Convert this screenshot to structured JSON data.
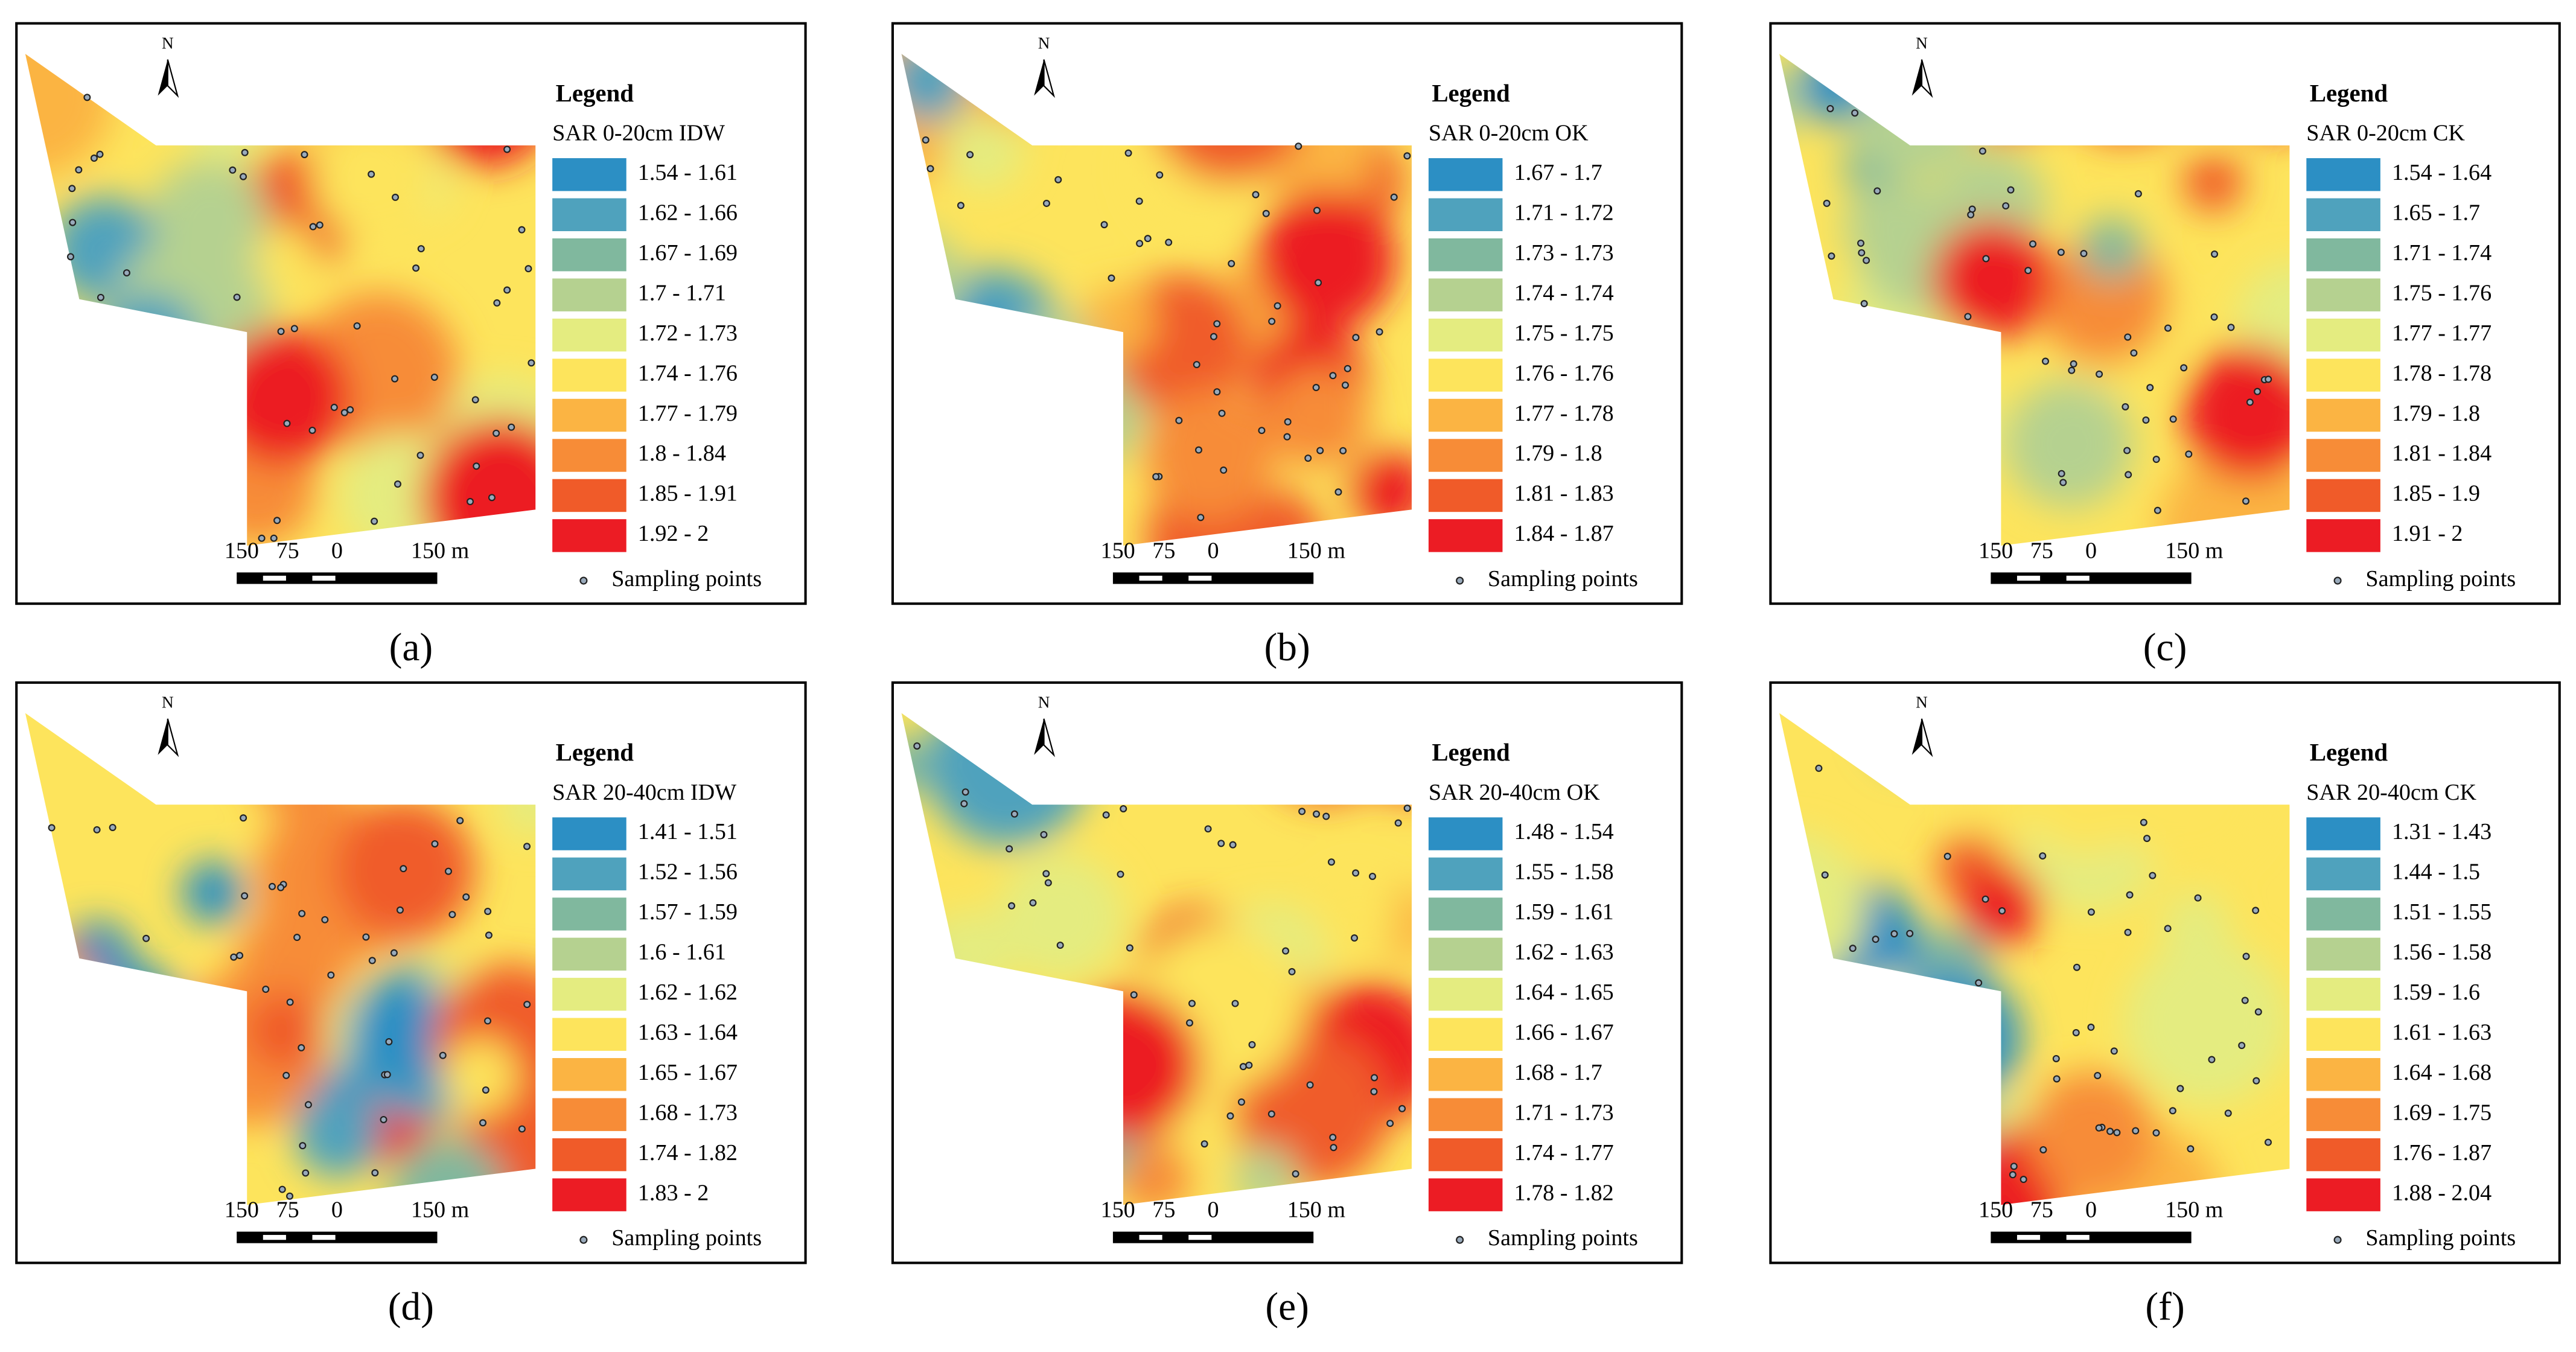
{
  "panels": [
    {
      "caption": "(a)",
      "north": "N",
      "legend_title": "Legend",
      "layer": "SAR 0-20cm IDW",
      "classes": [
        {
          "label": "1.54 - 1.61",
          "color": "#2c8fc4"
        },
        {
          "label": "1.62 - 1.66",
          "color": "#4fa2bd"
        },
        {
          "label": "1.67 - 1.69",
          "color": "#80b89e"
        },
        {
          "label": "1.7 - 1.71",
          "color": "#b5d190"
        },
        {
          "label": "1.72 - 1.73",
          "color": "#e4ec80"
        },
        {
          "label": "1.74 - 1.76",
          "color": "#fde45c"
        },
        {
          "label": "1.77 - 1.79",
          "color": "#fbb443"
        },
        {
          "label": "1.8 - 1.84",
          "color": "#f78c37"
        },
        {
          "label": "1.85 - 1.91",
          "color": "#f05b29"
        },
        {
          "label": "1.92 - 2",
          "color": "#ec1c24"
        }
      ],
      "scale_labels": [
        "150",
        "75",
        "0",
        "150 m"
      ],
      "points_label": "Sampling points"
    },
    {
      "caption": "(b)",
      "north": "N",
      "legend_title": "Legend",
      "layer": "SAR 0-20cm OK",
      "classes": [
        {
          "label": "1.67 - 1.7",
          "color": "#2c8fc4"
        },
        {
          "label": "1.71 - 1.72",
          "color": "#4fa2bd"
        },
        {
          "label": "1.73 - 1.73",
          "color": "#80b89e"
        },
        {
          "label": "1.74 - 1.74",
          "color": "#b5d190"
        },
        {
          "label": "1.75 - 1.75",
          "color": "#e4ec80"
        },
        {
          "label": "1.76 - 1.76",
          "color": "#fde45c"
        },
        {
          "label": "1.77 - 1.78",
          "color": "#fbb443"
        },
        {
          "label": "1.79 - 1.8",
          "color": "#f78c37"
        },
        {
          "label": "1.81 - 1.83",
          "color": "#f05b29"
        },
        {
          "label": "1.84 - 1.87",
          "color": "#ec1c24"
        }
      ],
      "scale_labels": [
        "150",
        "75",
        "0",
        "150 m"
      ],
      "points_label": "Sampling points"
    },
    {
      "caption": "(c)",
      "north": "N",
      "legend_title": "Legend",
      "layer": "SAR 0-20cm CK",
      "classes": [
        {
          "label": "1.54 - 1.64",
          "color": "#2c8fc4"
        },
        {
          "label": "1.65 - 1.7",
          "color": "#4fa2bd"
        },
        {
          "label": "1.71 - 1.74",
          "color": "#80b89e"
        },
        {
          "label": "1.75 - 1.76",
          "color": "#b5d190"
        },
        {
          "label": "1.77 - 1.77",
          "color": "#e4ec80"
        },
        {
          "label": "1.78 - 1.78",
          "color": "#fde45c"
        },
        {
          "label": "1.79 - 1.8",
          "color": "#fbb443"
        },
        {
          "label": "1.81 - 1.84",
          "color": "#f78c37"
        },
        {
          "label": "1.85 - 1.9",
          "color": "#f05b29"
        },
        {
          "label": "1.91 - 2",
          "color": "#ec1c24"
        }
      ],
      "scale_labels": [
        "150",
        "75",
        "0",
        "150 m"
      ],
      "points_label": "Sampling points"
    },
    {
      "caption": "(d)",
      "north": "N",
      "legend_title": "Legend",
      "layer": "SAR 20-40cm IDW",
      "classes": [
        {
          "label": "1.41 - 1.51",
          "color": "#2c8fc4"
        },
        {
          "label": "1.52 - 1.56",
          "color": "#4fa2bd"
        },
        {
          "label": "1.57 - 1.59",
          "color": "#80b89e"
        },
        {
          "label": "1.6 - 1.61",
          "color": "#b5d190"
        },
        {
          "label": "1.62 - 1.62",
          "color": "#e4ec80"
        },
        {
          "label": "1.63 - 1.64",
          "color": "#fde45c"
        },
        {
          "label": "1.65 - 1.67",
          "color": "#fbb443"
        },
        {
          "label": "1.68 - 1.73",
          "color": "#f78c37"
        },
        {
          "label": "1.74 - 1.82",
          "color": "#f05b29"
        },
        {
          "label": "1.83 - 2",
          "color": "#ec1c24"
        }
      ],
      "scale_labels": [
        "150",
        "75",
        "0",
        "150 m"
      ],
      "points_label": "Sampling points"
    },
    {
      "caption": "(e)",
      "north": "N",
      "legend_title": "Legend",
      "layer": "SAR 20-40cm OK",
      "classes": [
        {
          "label": "1.48 - 1.54",
          "color": "#2c8fc4"
        },
        {
          "label": "1.55 - 1.58",
          "color": "#4fa2bd"
        },
        {
          "label": "1.59 - 1.61",
          "color": "#80b89e"
        },
        {
          "label": "1.62 - 1.63",
          "color": "#b5d190"
        },
        {
          "label": "1.64 - 1.65",
          "color": "#e4ec80"
        },
        {
          "label": "1.66 - 1.67",
          "color": "#fde45c"
        },
        {
          "label": "1.68 - 1.7",
          "color": "#fbb443"
        },
        {
          "label": "1.71 - 1.73",
          "color": "#f78c37"
        },
        {
          "label": "1.74 - 1.77",
          "color": "#f05b29"
        },
        {
          "label": "1.78 - 1.82",
          "color": "#ec1c24"
        }
      ],
      "scale_labels": [
        "150",
        "75",
        "0",
        "150 m"
      ],
      "points_label": "Sampling points"
    },
    {
      "caption": "(f)",
      "north": "N",
      "legend_title": "Legend",
      "layer": "SAR 20-40cm CK",
      "classes": [
        {
          "label": "1.31 - 1.43",
          "color": "#2c8fc4"
        },
        {
          "label": "1.44 - 1.5",
          "color": "#4fa2bd"
        },
        {
          "label": "1.51 - 1.55",
          "color": "#80b89e"
        },
        {
          "label": "1.56 - 1.58",
          "color": "#b5d190"
        },
        {
          "label": "1.59 - 1.6",
          "color": "#e4ec80"
        },
        {
          "label": "1.61 - 1.63",
          "color": "#fde45c"
        },
        {
          "label": "1.64 - 1.68",
          "color": "#fbb443"
        },
        {
          "label": "1.69 - 1.75",
          "color": "#f78c37"
        },
        {
          "label": "1.76 - 1.87",
          "color": "#f05b29"
        },
        {
          "label": "1.88 - 2.04",
          "color": "#ec1c24"
        }
      ],
      "scale_labels": [
        "150",
        "75",
        "0",
        "150 m"
      ],
      "points_label": "Sampling points"
    }
  ]
}
